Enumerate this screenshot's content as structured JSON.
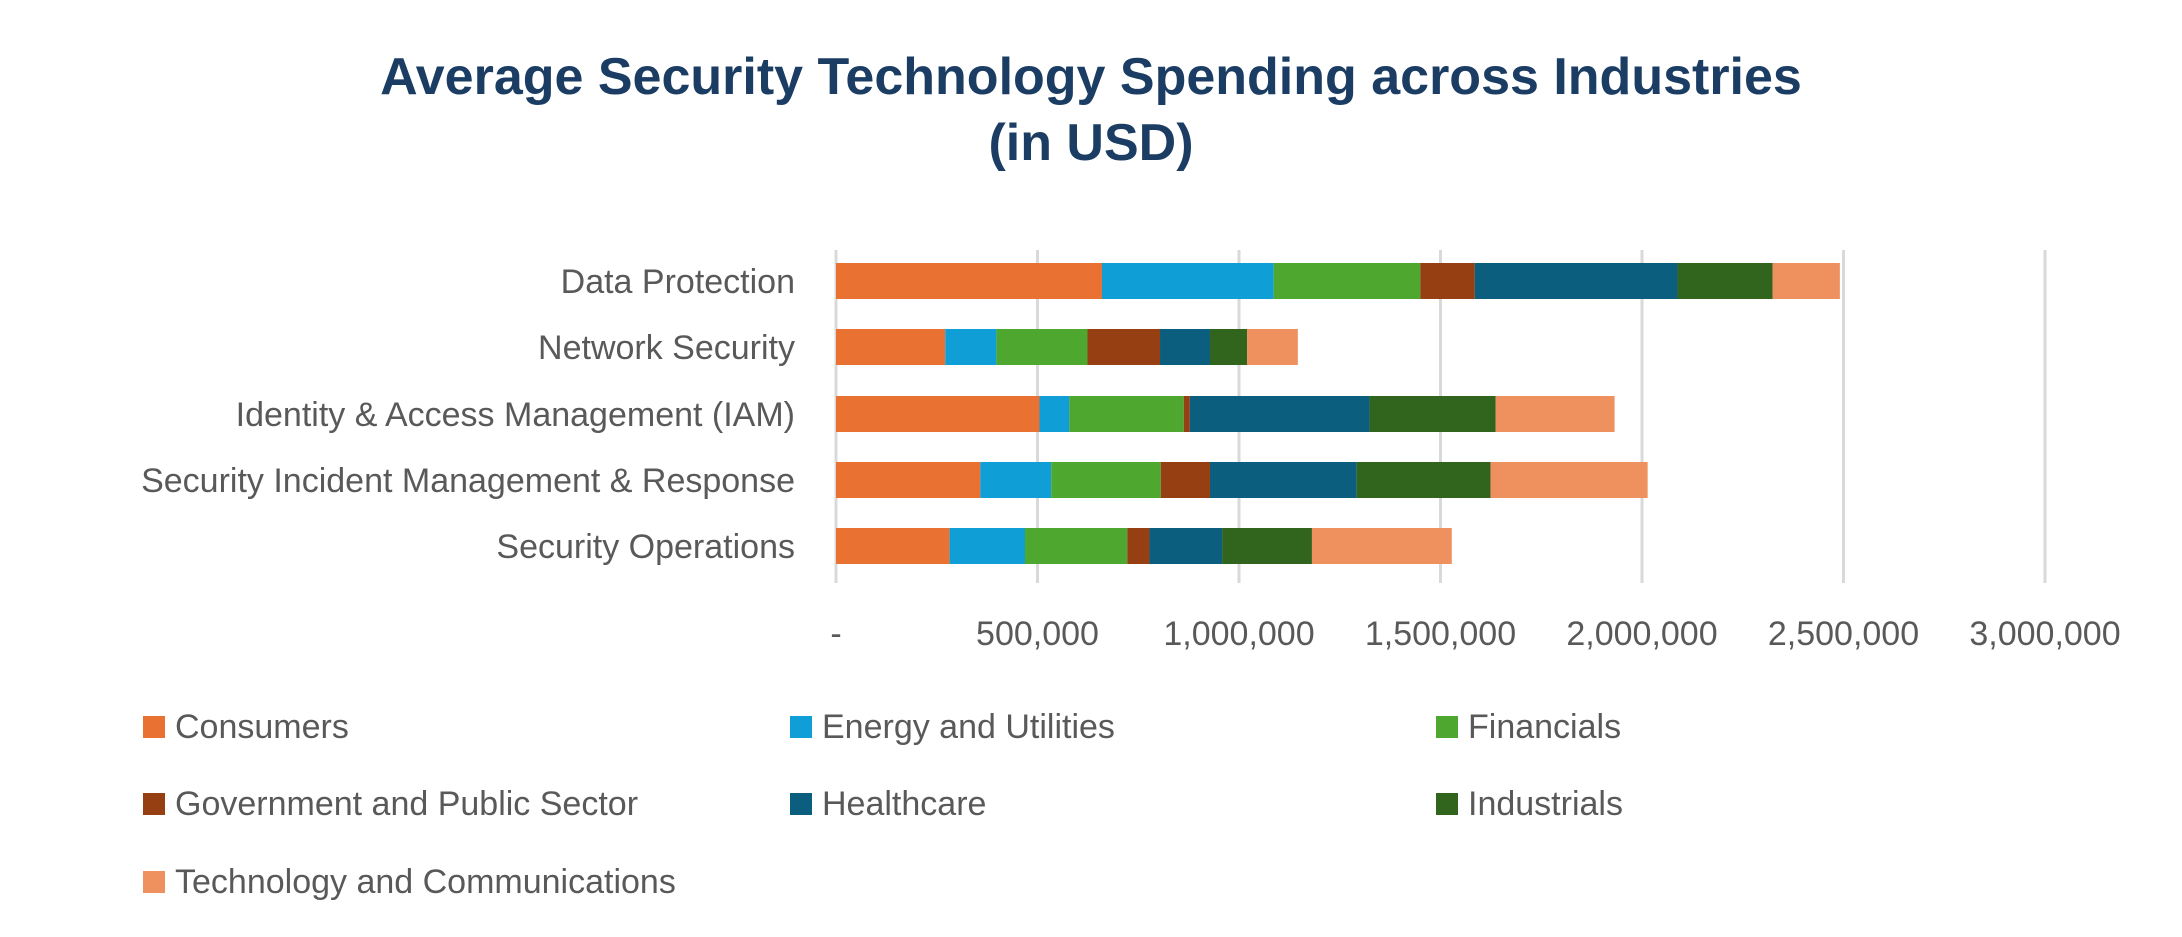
{
  "title_line1": "Average Security Technology Spending across Industries",
  "title_line2": "(in USD)",
  "chart_data": {
    "type": "bar",
    "orientation": "horizontal",
    "stacked": true,
    "title": "Average Security Technology Spending across Industries (in USD)",
    "categories": [
      "Data Protection",
      "Network Security",
      "Identity & Access Management (IAM)",
      "Security Incident Management & Response",
      "Security Operations"
    ],
    "series": [
      {
        "name": "Consumers",
        "color": "#e97132",
        "values": [
          660000,
          271000,
          505000,
          358000,
          282000
        ]
      },
      {
        "name": "Energy and Utilities",
        "color": "#0f9ed5",
        "values": [
          426000,
          127000,
          74000,
          176000,
          187000
        ]
      },
      {
        "name": "Financials",
        "color": "#4ea72e",
        "values": [
          364000,
          226000,
          284000,
          272000,
          254000
        ]
      },
      {
        "name": "Government and Public Sector",
        "color": "#963f12",
        "values": [
          135000,
          180000,
          15000,
          122000,
          55000
        ]
      },
      {
        "name": "Healthcare",
        "color": "#0b5e7e",
        "values": [
          503000,
          124000,
          446000,
          364000,
          180000
        ]
      },
      {
        "name": "Industrials",
        "color": "#31641c",
        "values": [
          236000,
          92000,
          313000,
          332000,
          223000
        ]
      },
      {
        "name": "Technology and Communications",
        "color": "#ee915e",
        "values": [
          167000,
          126000,
          295000,
          390000,
          347000
        ]
      }
    ],
    "xlim": [
      0,
      3000000
    ],
    "xticks": [
      0,
      500000,
      1000000,
      1500000,
      2000000,
      2500000,
      3000000
    ],
    "xtick_labels": [
      "-",
      "500,000",
      "1,000,000",
      "1,500,000",
      "2,000,000",
      "2,500,000",
      "3,000,000"
    ],
    "grid": true,
    "legend_placement": "bottom"
  }
}
